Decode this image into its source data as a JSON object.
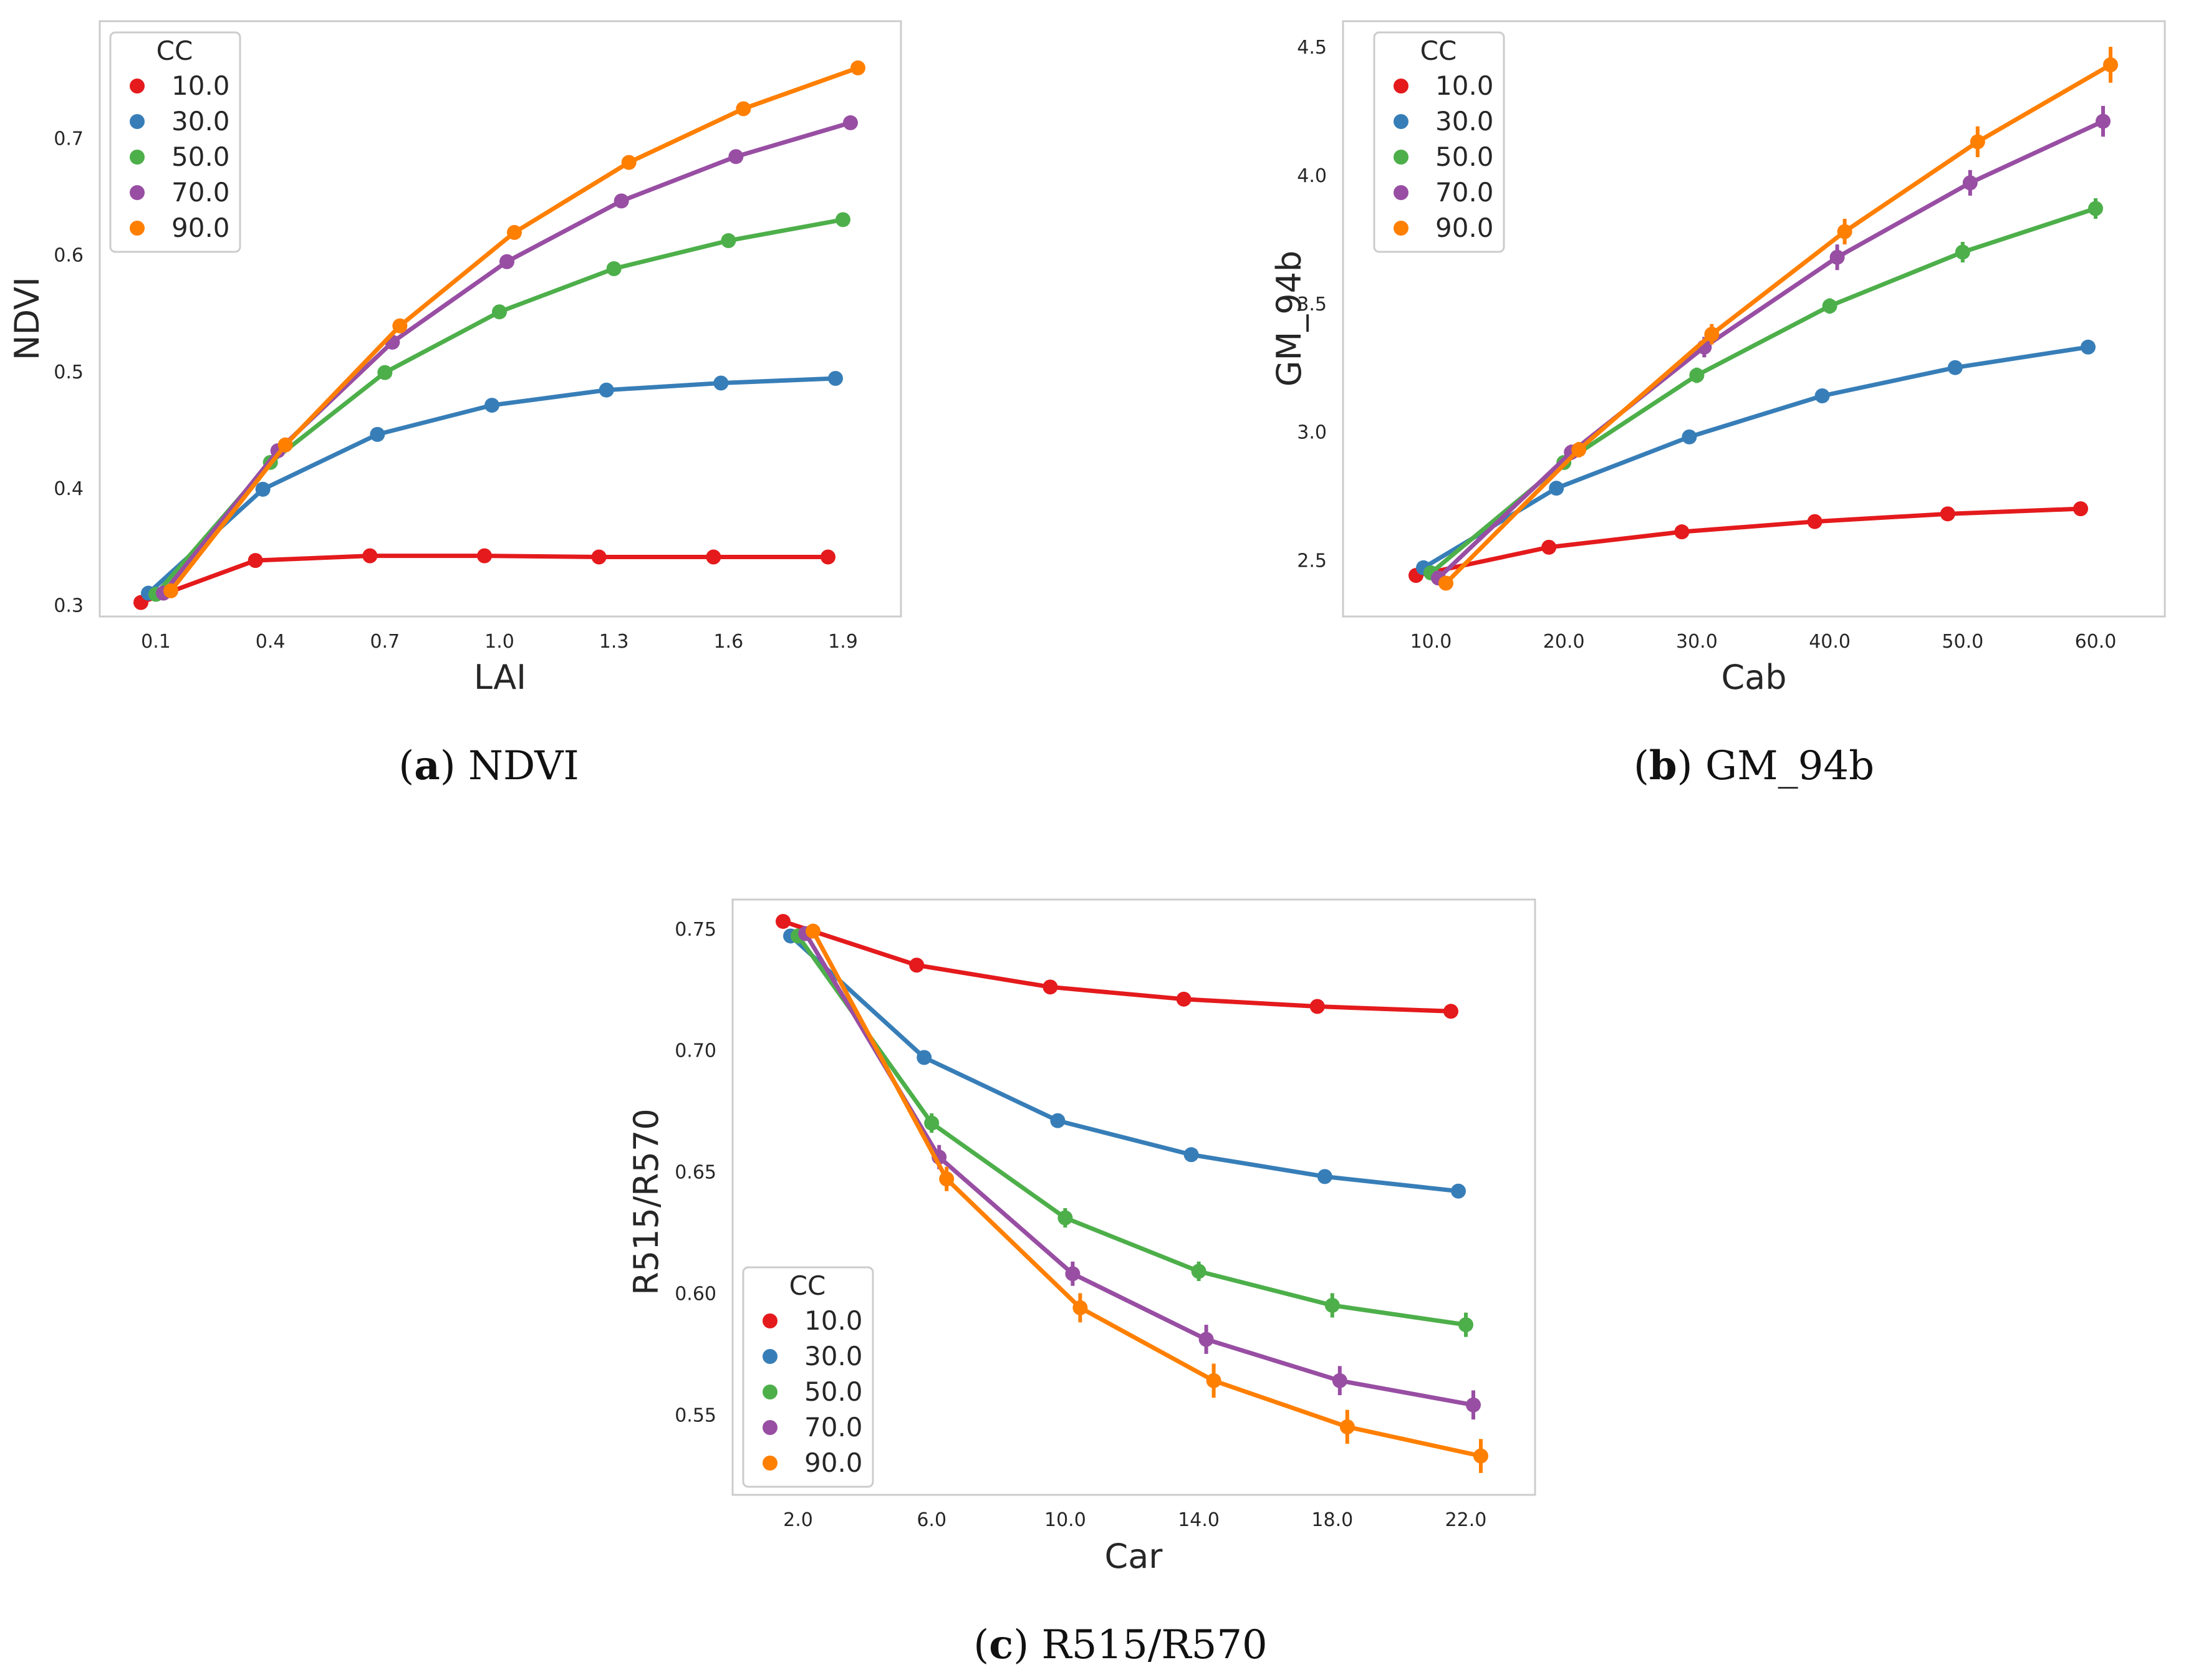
{
  "colors": {
    "series": [
      "#e41a1c",
      "#377eb8",
      "#4daf4a",
      "#984ea3",
      "#ff7f00"
    ],
    "frame": "#cccccc"
  },
  "chart_data": [
    {
      "type": "line",
      "panel": "a",
      "caption_letter": "a",
      "caption_text": "NDVI",
      "xlabel": "LAI",
      "ylabel": "NDVI",
      "x": [
        "0.1",
        "0.4",
        "0.7",
        "1.0",
        "1.3",
        "1.6",
        "1.9"
      ],
      "yticks": [
        "0.3",
        "0.4",
        "0.5",
        "0.6",
        "0.7"
      ],
      "ylim": [
        0.29,
        0.8
      ],
      "grid": false,
      "legend": {
        "title": "CC",
        "position": "upper-left"
      },
      "series": [
        {
          "name": "10.0",
          "values": [
            0.302,
            0.338,
            0.342,
            0.342,
            0.341,
            0.341,
            0.341
          ]
        },
        {
          "name": "30.0",
          "values": [
            0.31,
            0.399,
            0.446,
            0.471,
            0.484,
            0.49,
            0.494
          ]
        },
        {
          "name": "50.0",
          "values": [
            0.309,
            0.422,
            0.499,
            0.551,
            0.588,
            0.612,
            0.63
          ]
        },
        {
          "name": "70.0",
          "values": [
            0.31,
            0.432,
            0.525,
            0.594,
            0.646,
            0.684,
            0.713
          ]
        },
        {
          "name": "90.0",
          "values": [
            0.312,
            0.437,
            0.539,
            0.619,
            0.679,
            0.725,
            0.76
          ]
        }
      ]
    },
    {
      "type": "line",
      "panel": "b",
      "caption_letter": "b",
      "caption_text": "GM_94b",
      "xlabel": "Cab",
      "ylabel": "GM_94b",
      "x": [
        "10.0",
        "20.0",
        "30.0",
        "40.0",
        "50.0",
        "60.0"
      ],
      "yticks": [
        "2.5",
        "3.0",
        "3.5",
        "4.0",
        "4.5"
      ],
      "ylim": [
        2.28,
        4.6
      ],
      "grid": false,
      "legend": {
        "title": "CC",
        "position": "upper-left"
      },
      "series": [
        {
          "name": "10.0",
          "values": [
            2.44,
            2.55,
            2.61,
            2.65,
            2.68,
            2.7
          ],
          "err": [
            0.01,
            0.01,
            0.01,
            0.01,
            0.01,
            0.01
          ]
        },
        {
          "name": "30.0",
          "values": [
            2.47,
            2.78,
            2.98,
            3.14,
            3.25,
            3.33
          ],
          "err": [
            0.01,
            0.01,
            0.01,
            0.01,
            0.01,
            0.01
          ]
        },
        {
          "name": "50.0",
          "values": [
            2.45,
            2.88,
            3.22,
            3.49,
            3.7,
            3.87
          ],
          "err": [
            0.02,
            0.02,
            0.03,
            0.03,
            0.04,
            0.04
          ]
        },
        {
          "name": "70.0",
          "values": [
            2.43,
            2.92,
            3.33,
            3.68,
            3.97,
            4.21
          ],
          "err": [
            0.02,
            0.03,
            0.04,
            0.05,
            0.05,
            0.06
          ]
        },
        {
          "name": "90.0",
          "values": [
            2.41,
            2.93,
            3.38,
            3.78,
            4.13,
            4.43
          ],
          "err": [
            0.02,
            0.03,
            0.04,
            0.05,
            0.06,
            0.07
          ]
        }
      ]
    },
    {
      "type": "line",
      "panel": "c",
      "caption_letter": "c",
      "caption_text": "R515/R570",
      "xlabel": "Car",
      "ylabel": "R515/R570",
      "x": [
        "2.0",
        "6.0",
        "10.0",
        "14.0",
        "18.0",
        "22.0"
      ],
      "yticks": [
        "0.55",
        "0.60",
        "0.65",
        "0.70",
        "0.75"
      ],
      "ylim": [
        0.517,
        0.762
      ],
      "grid": false,
      "legend": {
        "title": "CC",
        "position": "lower-left"
      },
      "series": [
        {
          "name": "10.0",
          "values": [
            0.753,
            0.735,
            0.726,
            0.721,
            0.718,
            0.716
          ],
          "err": [
            0.001,
            0.001,
            0.001,
            0.001,
            0.001,
            0.001
          ]
        },
        {
          "name": "30.0",
          "values": [
            0.747,
            0.697,
            0.671,
            0.657,
            0.648,
            0.642
          ],
          "err": [
            0.002,
            0.002,
            0.003,
            0.003,
            0.003,
            0.003
          ]
        },
        {
          "name": "50.0",
          "values": [
            0.747,
            0.67,
            0.631,
            0.609,
            0.595,
            0.587
          ],
          "err": [
            0.003,
            0.004,
            0.004,
            0.004,
            0.005,
            0.005
          ]
        },
        {
          "name": "70.0",
          "values": [
            0.748,
            0.656,
            0.608,
            0.581,
            0.564,
            0.554
          ],
          "err": [
            0.003,
            0.005,
            0.005,
            0.006,
            0.006,
            0.006
          ]
        },
        {
          "name": "90.0",
          "values": [
            0.749,
            0.647,
            0.594,
            0.564,
            0.545,
            0.533
          ],
          "err": [
            0.003,
            0.005,
            0.006,
            0.007,
            0.007,
            0.007
          ]
        }
      ]
    }
  ]
}
